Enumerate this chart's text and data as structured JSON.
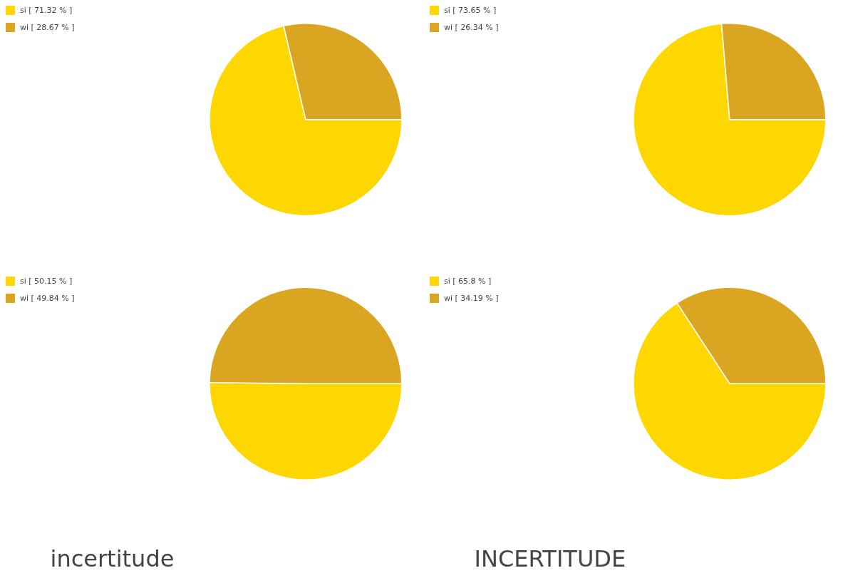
{
  "chart_data": [
    {
      "type": "pie",
      "categories": [
        "si [ 71.32 % ]",
        "wi [ 28.67 % ]"
      ],
      "values": [
        71.32,
        28.67
      ],
      "colors": [
        "#ffd700",
        "#daa520"
      ],
      "legend": "top left"
    },
    {
      "type": "pie",
      "categories": [
        "si [ 73.65 % ]",
        "wi [ 26.34 % ]"
      ],
      "values": [
        73.65,
        26.34
      ],
      "colors": [
        "#ffd700",
        "#daa520"
      ],
      "legend": "top left"
    },
    {
      "type": "pie",
      "categories": [
        "si [ 50.15 % ]",
        "wi [ 49.84 % ]"
      ],
      "values": [
        50.15,
        49.84
      ],
      "colors": [
        "#ffd700",
        "#daa520"
      ],
      "legend": "top left",
      "annotations": [
        "incertitude"
      ]
    },
    {
      "type": "pie",
      "categories": [
        "si [ 65.8 % ]",
        "wi [ 34.19 % ]"
      ],
      "values": [
        65.8,
        34.19
      ],
      "colors": [
        "#ffd700",
        "#daa520"
      ],
      "legend": "top left",
      "annotations": [
        "INCERTITUDE"
      ]
    }
  ]
}
